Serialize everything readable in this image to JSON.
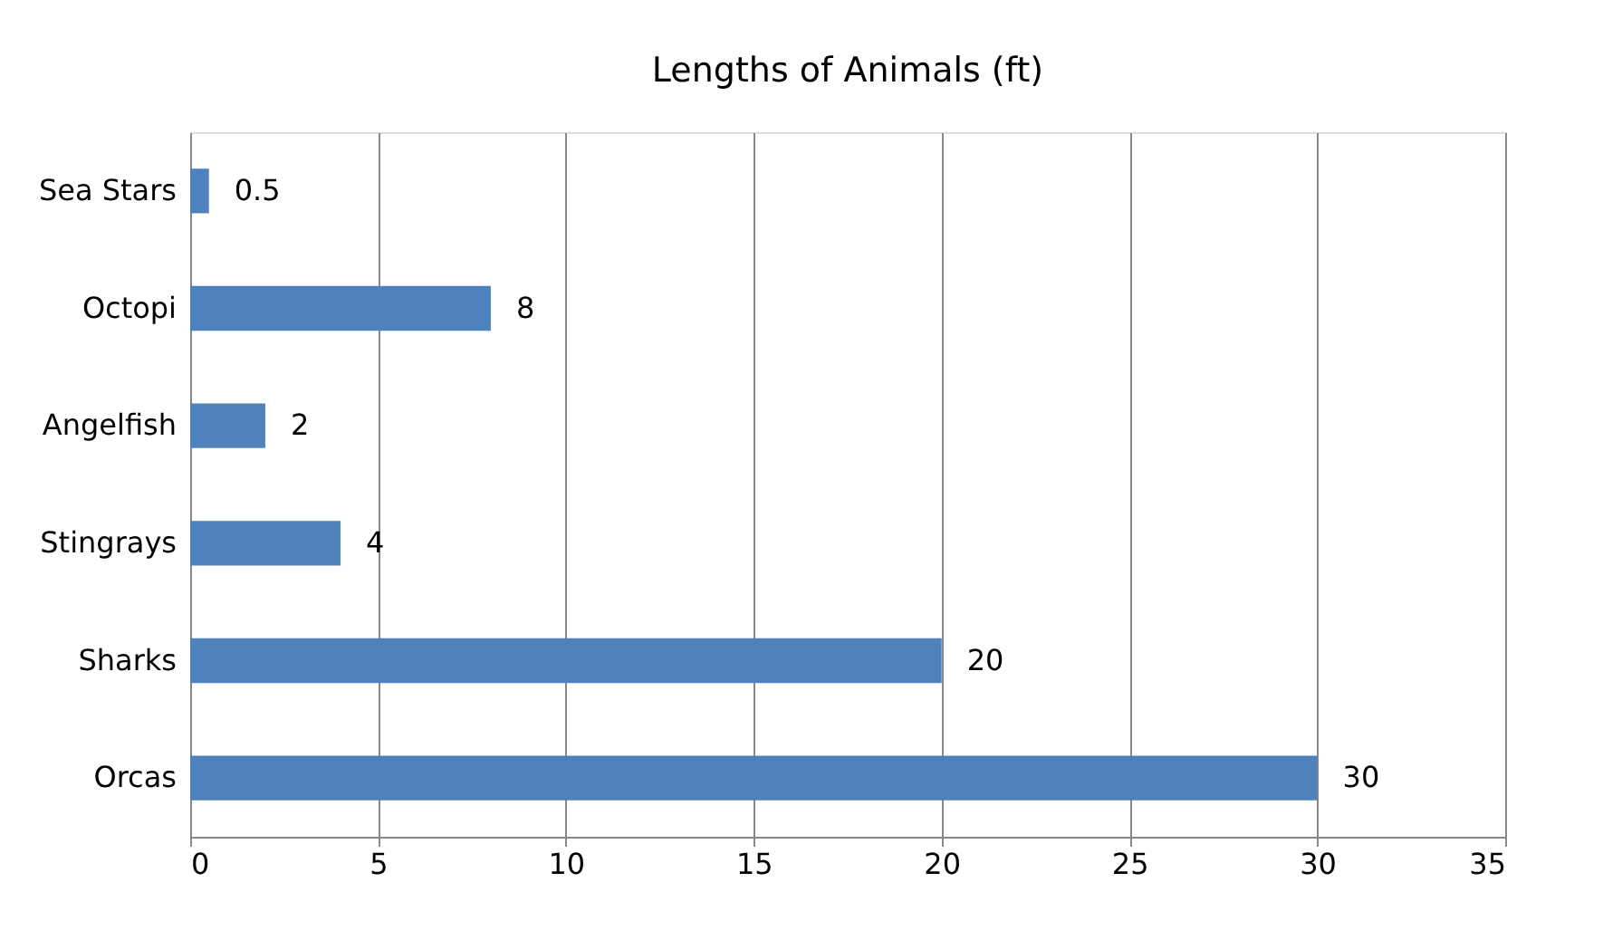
{
  "chart_data": {
    "type": "bar",
    "orientation": "horizontal",
    "title": "Lengths of Animals (ft)",
    "categories": [
      "Sea Stars",
      "Octopi",
      "Angelfish",
      "Stingrays",
      "Sharks",
      "Orcas"
    ],
    "values": [
      0.5,
      8,
      2,
      4,
      20,
      30
    ],
    "color": "#4f81bd",
    "xlim": [
      0,
      35
    ],
    "xticks": [
      0,
      5,
      10,
      15,
      20,
      25,
      30,
      35
    ],
    "grid": "x",
    "data_labels": true
  }
}
